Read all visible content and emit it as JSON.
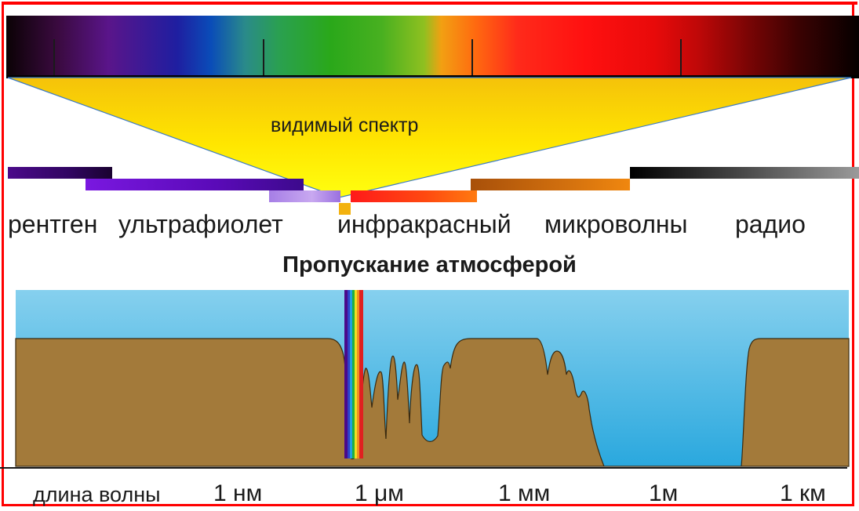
{
  "visible_spectrum_label": "видимый спектр",
  "regions": [
    {
      "key": "xray",
      "label": "рентген"
    },
    {
      "key": "uv",
      "label": "ультрафиолет"
    },
    {
      "key": "ir",
      "label": "инфракрасный"
    },
    {
      "key": "microwave",
      "label": "микроволны"
    },
    {
      "key": "radio",
      "label": "радио"
    }
  ],
  "transmission_title": "Пропускание атмосферой",
  "axis": {
    "label": "длина волны",
    "ticks": [
      "1 нм",
      "1 μм",
      "1 мм",
      "1м",
      "1 км"
    ]
  },
  "colors": {
    "frame": "#ff0000",
    "sky": "#4ab0e0",
    "ground": "#a37a3a",
    "cone": "#ffe600"
  }
}
